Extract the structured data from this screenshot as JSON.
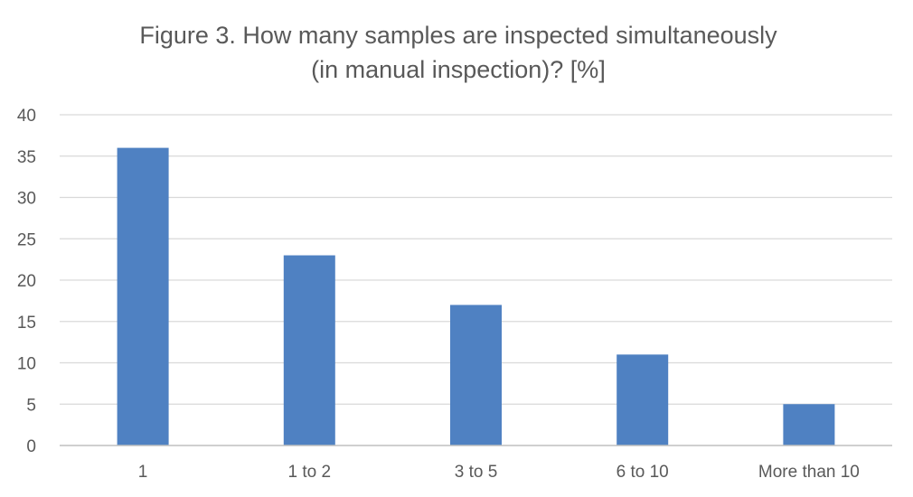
{
  "chart_data": {
    "type": "bar",
    "title": [
      "Figure 3. How many samples are inspected simultaneously",
      "(in manual inspection)? [%]"
    ],
    "xlabel": "",
    "ylabel": "",
    "categories": [
      "1",
      "1 to 2",
      "3 to 5",
      "6 to 10",
      "More than 10"
    ],
    "values": [
      36,
      23,
      17,
      11,
      5
    ],
    "ylim": [
      0,
      40
    ],
    "yticks": [
      0,
      5,
      10,
      15,
      20,
      25,
      30,
      35,
      40
    ],
    "grid": true,
    "legend": "none",
    "bar_color": "#4f81c2",
    "grid_color": "#d9d9d9",
    "axis_color": "#bfbfbf",
    "text_color": "#595959"
  }
}
